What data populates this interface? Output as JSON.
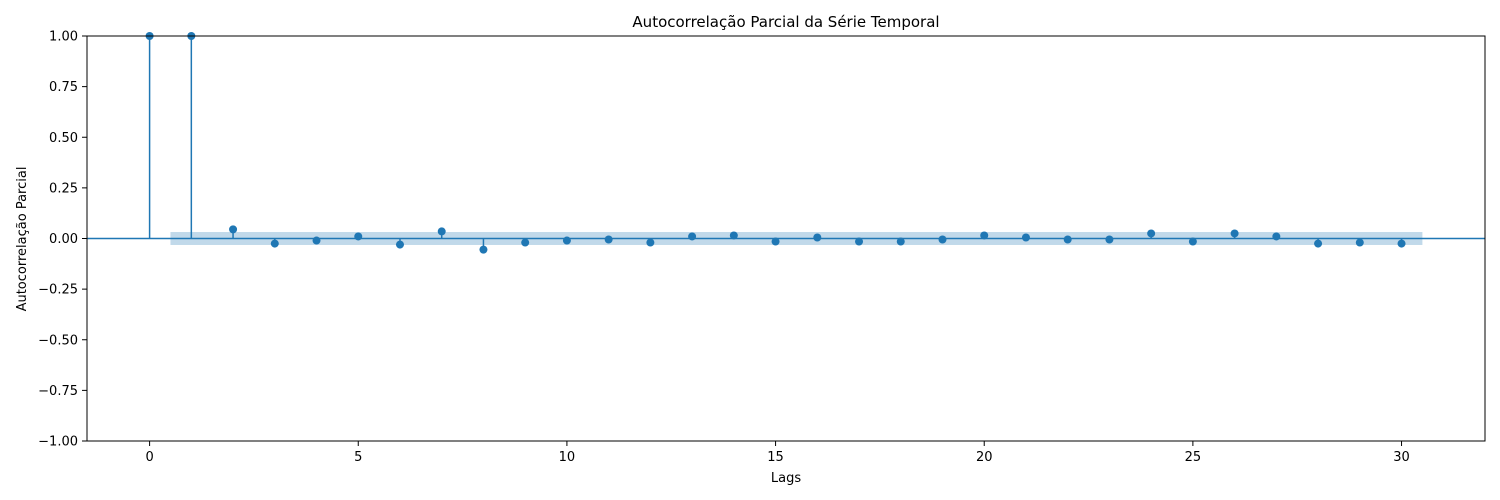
{
  "chart_data": {
    "type": "stem",
    "title": "Autocorrelação Parcial da Série Temporal",
    "xlabel": "Lags",
    "ylabel": "Autocorrelação Parcial",
    "xlim": [
      -1.5,
      32
    ],
    "ylim": [
      -1.0,
      1.0
    ],
    "x_ticks": [
      0,
      5,
      10,
      15,
      20,
      25,
      30
    ],
    "x_tick_labels": [
      "0",
      "5",
      "10",
      "15",
      "20",
      "25",
      "30"
    ],
    "y_ticks": [
      -1.0,
      -0.75,
      -0.5,
      -0.25,
      0.0,
      0.25,
      0.5,
      0.75,
      1.0
    ],
    "y_tick_labels": [
      "−1.00",
      "−0.75",
      "−0.50",
      "−0.25",
      "0.00",
      "0.25",
      "0.50",
      "0.75",
      "1.00"
    ],
    "lags": [
      0,
      1,
      2,
      3,
      4,
      5,
      6,
      7,
      8,
      9,
      10,
      11,
      12,
      13,
      14,
      15,
      16,
      17,
      18,
      19,
      20,
      21,
      22,
      23,
      24,
      25,
      26,
      27,
      28,
      29,
      30
    ],
    "values": [
      1.0,
      1.0,
      0.045,
      -0.025,
      -0.01,
      0.01,
      -0.03,
      0.035,
      -0.055,
      -0.02,
      -0.01,
      -0.005,
      -0.02,
      0.01,
      0.015,
      -0.015,
      0.005,
      -0.015,
      -0.015,
      -0.005,
      0.015,
      0.005,
      -0.005,
      -0.005,
      0.025,
      -0.015,
      0.025,
      0.01,
      -0.025,
      -0.02,
      -0.025
    ],
    "confidence_band": {
      "lag_start": 0.5,
      "lag_end": 30.5,
      "lower": -0.032,
      "upper": 0.032
    },
    "colors": {
      "stem": "#1f77b4",
      "band": "#1f77b4",
      "band_opacity": 0.28,
      "axis": "#000000"
    }
  }
}
